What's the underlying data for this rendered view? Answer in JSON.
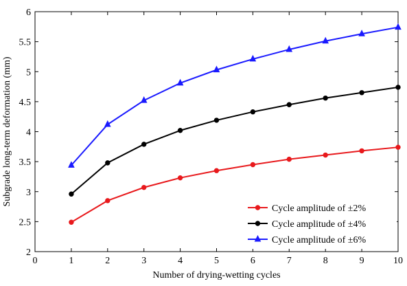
{
  "chart_data": {
    "type": "line",
    "xlabel": "Number of drying-wetting cycles",
    "ylabel": "Subgrade long-term deformation (mm)",
    "xlim": [
      0,
      10
    ],
    "ylim": [
      2,
      6
    ],
    "xticks": [
      "0",
      "1",
      "2",
      "3",
      "4",
      "5",
      "6",
      "7",
      "8",
      "9",
      "10"
    ],
    "yticks": [
      "2",
      "2.5",
      "3",
      "3.5",
      "4",
      "4.5",
      "5",
      "5.5",
      "6"
    ],
    "grid": false,
    "legend_position": "bottom-right",
    "x": [
      1,
      2,
      3,
      4,
      5,
      6,
      7,
      8,
      9,
      10
    ],
    "series": [
      {
        "name": "Cycle amplitude of ±2%",
        "color": "#e8191c",
        "marker": "circle",
        "values": [
          2.49,
          2.85,
          3.07,
          3.23,
          3.35,
          3.45,
          3.54,
          3.61,
          3.68,
          3.74
        ]
      },
      {
        "name": "Cycle amplitude of ±4%",
        "color": "#000000",
        "marker": "circle",
        "values": [
          2.96,
          3.48,
          3.79,
          4.02,
          4.19,
          4.33,
          4.45,
          4.56,
          4.65,
          4.74
        ]
      },
      {
        "name": "Cycle amplitude of ±6%",
        "color": "#1a1aff",
        "marker": "triangle",
        "values": [
          3.44,
          4.12,
          4.52,
          4.81,
          5.03,
          5.21,
          5.37,
          5.51,
          5.63,
          5.74
        ]
      }
    ]
  }
}
